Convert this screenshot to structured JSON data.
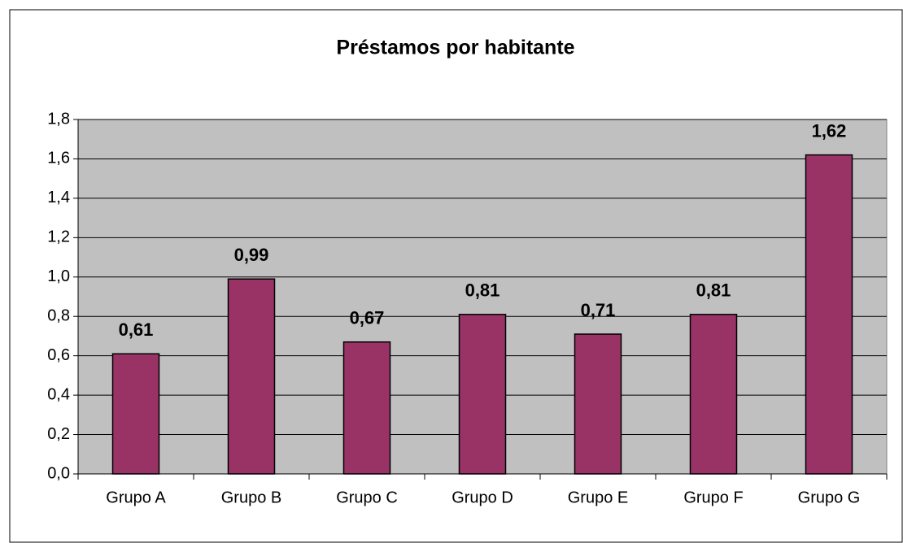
{
  "chart_data": {
    "type": "bar",
    "title": "Préstamos por habitante",
    "categories": [
      "Grupo A",
      "Grupo B",
      "Grupo C",
      "Grupo D",
      "Grupo E",
      "Grupo F",
      "Grupo G"
    ],
    "values": [
      0.61,
      0.99,
      0.67,
      0.81,
      0.71,
      0.81,
      1.62
    ],
    "value_labels": [
      "0,61",
      "0,99",
      "0,67",
      "0,81",
      "0,71",
      "0,81",
      "1,62"
    ],
    "color": "#993366",
    "ylim": [
      0,
      1.8
    ],
    "yticks": [
      {
        "value": 0,
        "label": "0,0"
      },
      {
        "value": 0.2,
        "label": "0,2"
      },
      {
        "value": 0.4,
        "label": "0,4"
      },
      {
        "value": 0.6,
        "label": "0,6"
      },
      {
        "value": 0.8,
        "label": "0,8"
      },
      {
        "value": 1.0,
        "label": "1,0"
      },
      {
        "value": 1.2,
        "label": "1,2"
      },
      {
        "value": 1.4,
        "label": "1,4"
      },
      {
        "value": 1.6,
        "label": "1,6"
      },
      {
        "value": 1.8,
        "label": "1,8"
      }
    ],
    "grid": true
  }
}
